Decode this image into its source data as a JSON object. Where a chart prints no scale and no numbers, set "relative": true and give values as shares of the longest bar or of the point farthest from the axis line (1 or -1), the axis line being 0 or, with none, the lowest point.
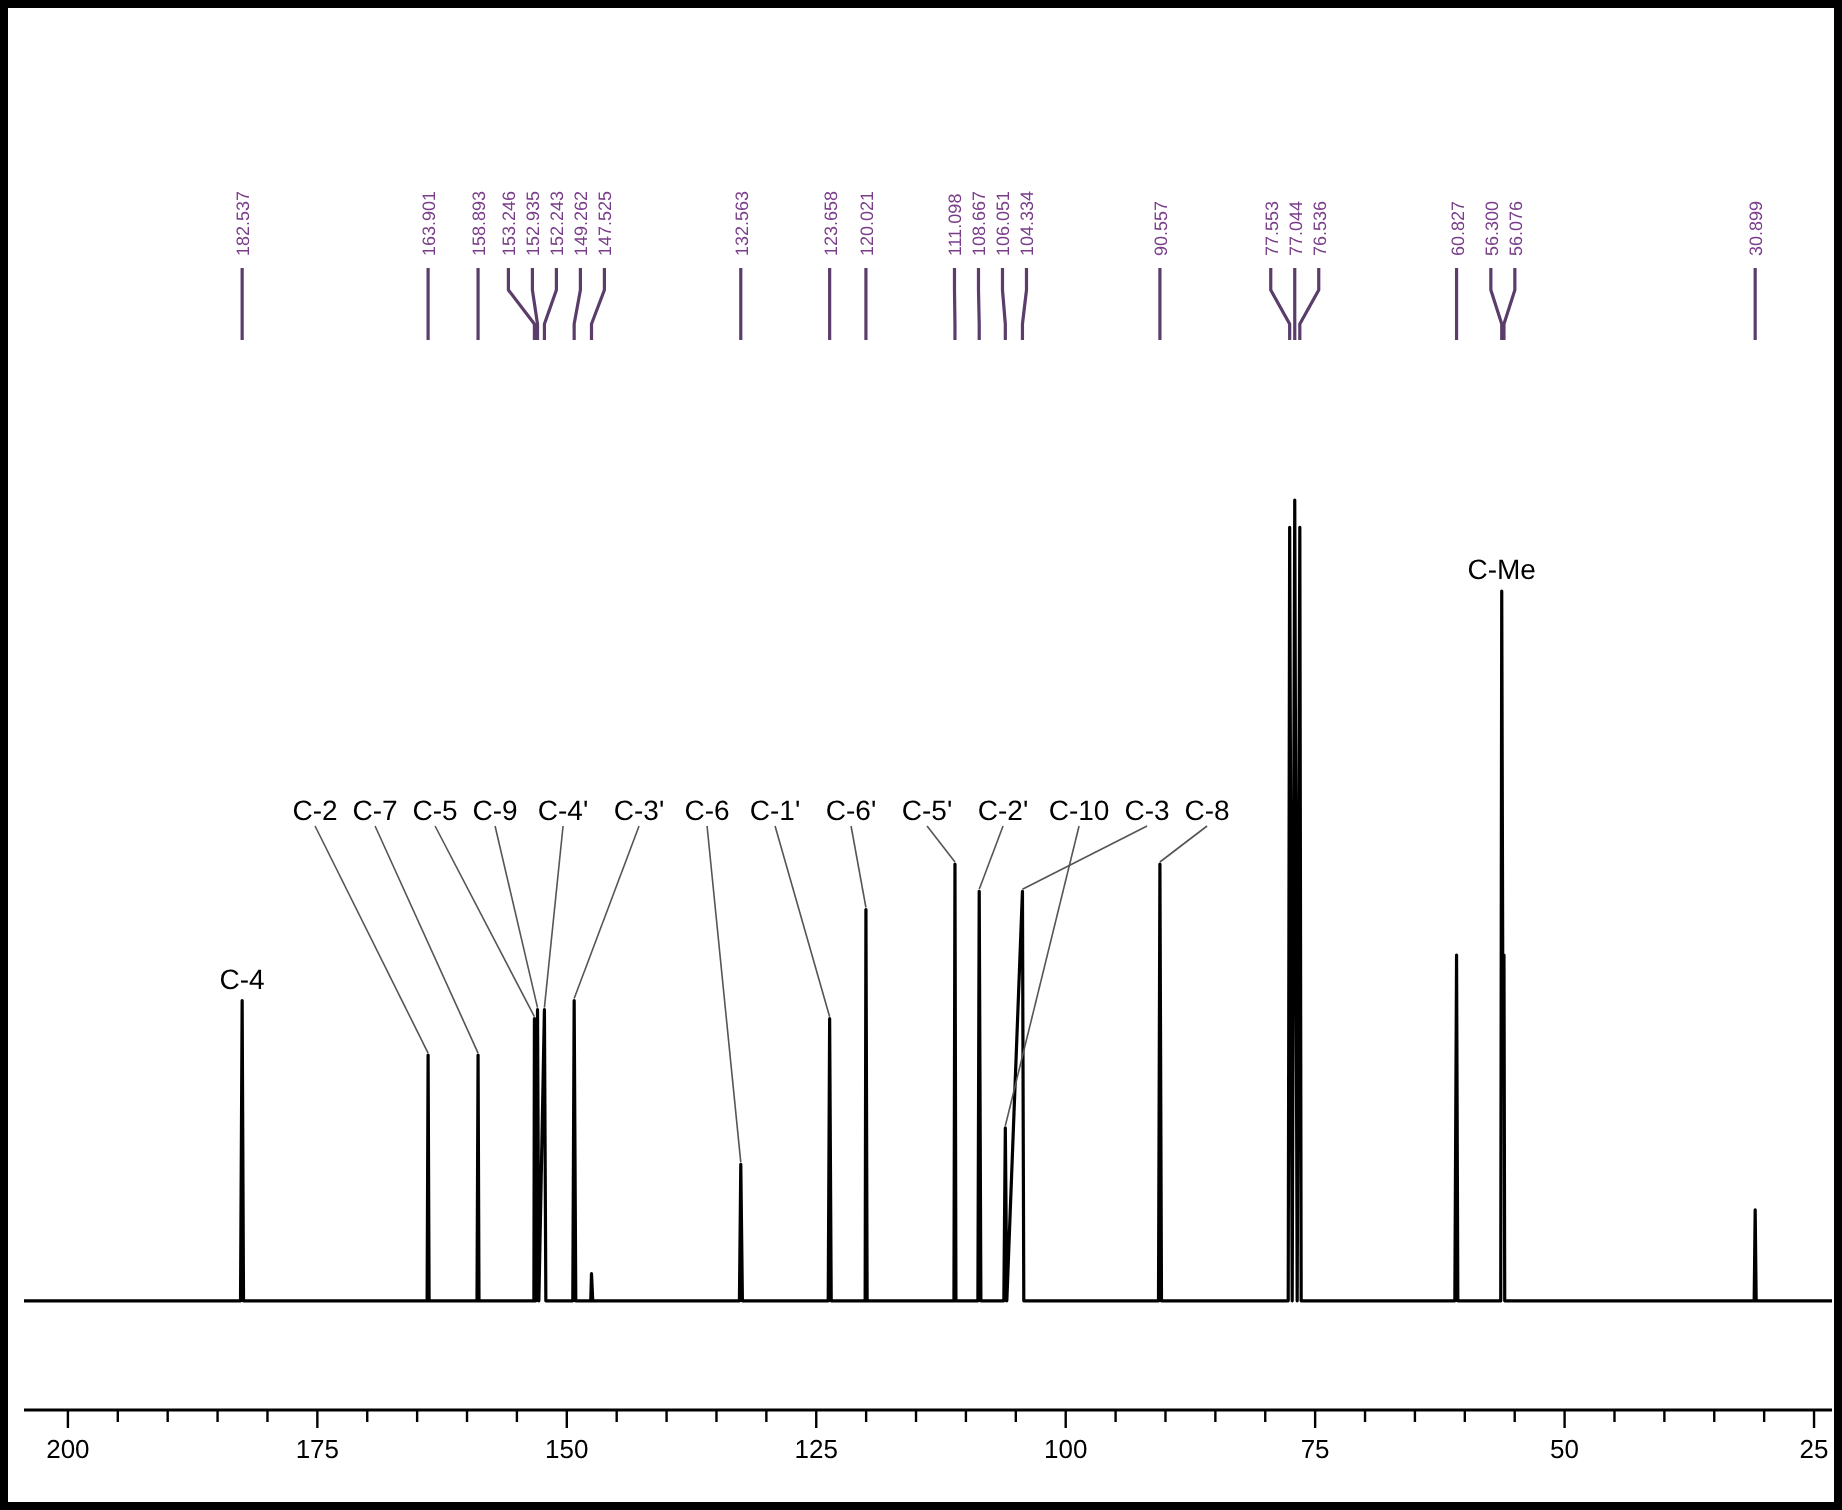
{
  "chart_data": {
    "type": "line",
    "relative": true,
    "tick_labels": "x",
    "grid": false,
    "marker": "none",
    "line_style": "solid",
    "xlim": [
      204.4,
      23.2
    ],
    "xticks": [
      200,
      {
        "value": 195,
        "label": null
      },
      {
        "value": 190,
        "label": null
      },
      {
        "value": 185,
        "label": null
      },
      {
        "value": 180,
        "label": null
      },
      175,
      {
        "value": 170,
        "label": null
      },
      {
        "value": 165,
        "label": null
      },
      {
        "value": 160,
        "label": null
      },
      {
        "value": 155,
        "label": null
      },
      150,
      {
        "value": 145,
        "label": null
      },
      {
        "value": 140,
        "label": null
      },
      {
        "value": 135,
        "label": null
      },
      {
        "value": 130,
        "label": null
      },
      125,
      {
        "value": 120,
        "label": null
      },
      {
        "value": 115,
        "label": null
      },
      {
        "value": 110,
        "label": null
      },
      {
        "value": 105,
        "label": null
      },
      100,
      {
        "value": 95,
        "label": null
      },
      {
        "value": 90,
        "label": null
      },
      {
        "value": 85,
        "label": null
      },
      {
        "value": 80,
        "label": null
      },
      75,
      {
        "value": 70,
        "label": null
      },
      {
        "value": 65,
        "label": null
      },
      {
        "value": 60,
        "label": null
      },
      {
        "value": 55,
        "label": null
      },
      50,
      {
        "value": 45,
        "label": null
      },
      {
        "value": 40,
        "label": null
      },
      {
        "value": 35,
        "label": null
      },
      {
        "value": 30,
        "label": null
      },
      25
    ],
    "series": [
      {
        "color": "#000000",
        "x": [
          204.4,
          182.7,
          182.537,
          182.4,
          164.0,
          163.901,
          163.8,
          159.0,
          158.893,
          158.8,
          153.3,
          153.246,
          153.1,
          152.935,
          152.8,
          152.243,
          152.1,
          149.4,
          149.262,
          149.1,
          147.6,
          147.525,
          147.4,
          132.7,
          132.563,
          132.4,
          123.8,
          123.658,
          123.5,
          120.1,
          120.021,
          119.9,
          111.2,
          111.098,
          111.0,
          108.8,
          108.667,
          108.5,
          106.2,
          106.051,
          105.9,
          104.334,
          104.2,
          90.7,
          90.557,
          90.4,
          77.7,
          77.553,
          77.3,
          77.044,
          76.8,
          76.536,
          76.4,
          61.0,
          60.827,
          60.7,
          56.4,
          56.3,
          56.2,
          56.076,
          56.0,
          31.0,
          30.899,
          30.8,
          23.2
        ],
        "values": [
          0.12,
          0.12,
          0.45,
          0.12,
          0.12,
          0.39,
          0.12,
          0.12,
          0.39,
          0.12,
          0.12,
          0.43,
          0.12,
          0.44,
          0.12,
          0.44,
          0.12,
          0.12,
          0.45,
          0.12,
          0.12,
          0.15,
          0.12,
          0.12,
          0.27,
          0.12,
          0.12,
          0.43,
          0.12,
          0.12,
          0.55,
          0.12,
          0.12,
          0.6,
          0.12,
          0.12,
          0.57,
          0.12,
          0.12,
          0.31,
          0.12,
          0.57,
          0.12,
          0.12,
          0.6,
          0.12,
          0.12,
          0.97,
          0.12,
          1.0,
          0.12,
          0.97,
          0.12,
          0.12,
          0.5,
          0.12,
          0.12,
          0.9,
          0.5,
          0.5,
          0.12,
          0.12,
          0.22,
          0.12,
          0.12
        ]
      }
    ],
    "annotations": [
      {
        "text": "182.537",
        "x": 182.537
      },
      {
        "text": "163.901",
        "x": 163.901
      },
      {
        "text": "158.893",
        "x": 158.893
      },
      {
        "text": "153.246",
        "x": 153.246
      },
      {
        "text": "152.935",
        "x": 152.935
      },
      {
        "text": "152.243",
        "x": 152.243
      },
      {
        "text": "149.262",
        "x": 149.262
      },
      {
        "text": "147.525",
        "x": 147.525
      },
      {
        "text": "132.563",
        "x": 132.563
      },
      {
        "text": "123.658",
        "x": 123.658
      },
      {
        "text": "120.021",
        "x": 120.021
      },
      {
        "text": "111.098",
        "x": 111.098
      },
      {
        "text": "108.667",
        "x": 108.667
      },
      {
        "text": "106.051",
        "x": 106.051
      },
      {
        "text": "104.334",
        "x": 104.334
      },
      {
        "text": "90.557",
        "x": 90.557
      },
      {
        "text": "77.553",
        "x": 77.553
      },
      {
        "text": "77.044",
        "x": 77.044
      },
      {
        "text": "76.536",
        "x": 76.536
      },
      {
        "text": "60.827",
        "x": 60.827
      },
      {
        "text": "56.300",
        "x": 56.3
      },
      {
        "text": "56.076",
        "x": 56.076
      },
      {
        "text": "30.899",
        "x": 30.899
      },
      {
        "text": "C-4",
        "x": 182.537,
        "y": 0.45
      },
      {
        "text": "C-2",
        "x": 163.901,
        "y": 0.39
      },
      {
        "text": "C-7",
        "x": 158.893,
        "y": 0.39
      },
      {
        "text": "C-5",
        "x": 153.246,
        "y": 0.43
      },
      {
        "text": "C-9",
        "x": 152.935,
        "y": 0.44
      },
      {
        "text": "C-4'",
        "x": 152.243,
        "y": 0.44
      },
      {
        "text": "C-3'",
        "x": 149.262,
        "y": 0.45
      },
      {
        "text": "C-6",
        "x": 132.563,
        "y": 0.27
      },
      {
        "text": "C-1'",
        "x": 123.658,
        "y": 0.43
      },
      {
        "text": "C-6'",
        "x": 120.021,
        "y": 0.55
      },
      {
        "text": "C-5'",
        "x": 111.098,
        "y": 0.6
      },
      {
        "text": "C-2'",
        "x": 108.667,
        "y": 0.57
      },
      {
        "text": "C-10",
        "x": 106.051,
        "y": 0.31
      },
      {
        "text": "C-3",
        "x": 104.334,
        "y": 0.57
      },
      {
        "text": "C-8",
        "x": 90.557,
        "y": 0.6
      },
      {
        "text": "C-Me",
        "x": 56.3,
        "y": 0.9
      }
    ]
  }
}
